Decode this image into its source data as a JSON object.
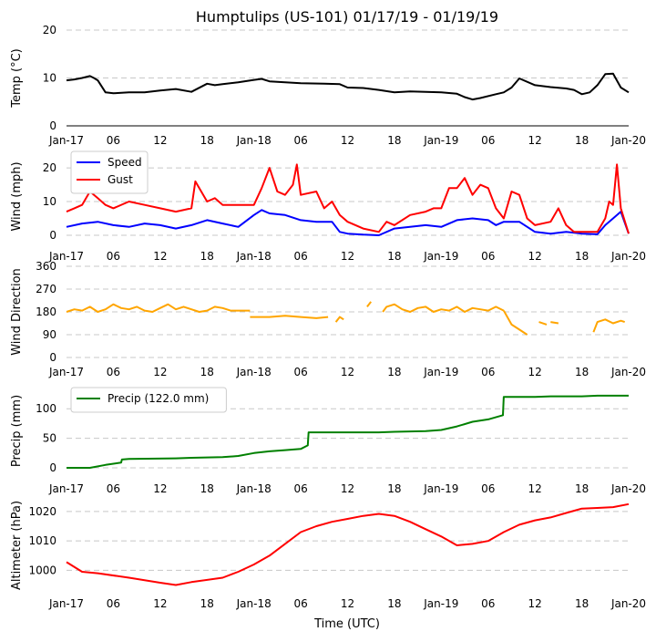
{
  "chart_data": {
    "type": "line",
    "title": "Humptulips (US-101) 01/17/19 - 01/19/19",
    "xlabel": "Time (UTC)",
    "x_range_hours": [
      0,
      72
    ],
    "x_ticks": [
      {
        "h": 0,
        "label": "Jan-17"
      },
      {
        "h": 6,
        "label": "06"
      },
      {
        "h": 12,
        "label": "12"
      },
      {
        "h": 18,
        "label": "18"
      },
      {
        "h": 24,
        "label": "Jan-18"
      },
      {
        "h": 30,
        "label": "06"
      },
      {
        "h": 36,
        "label": "12"
      },
      {
        "h": 42,
        "label": "18"
      },
      {
        "h": 48,
        "label": "Jan-19"
      },
      {
        "h": 54,
        "label": "06"
      },
      {
        "h": 60,
        "label": "12"
      },
      {
        "h": 66,
        "label": "18"
      },
      {
        "h": 72,
        "label": "Jan-20"
      }
    ],
    "panels": [
      {
        "key": "temp",
        "ylabel": "Temp (°C)",
        "ylim": [
          0,
          20
        ],
        "yticks": [
          0,
          10,
          20
        ],
        "series": [
          {
            "name": "Temp",
            "color": "#000000",
            "x": [
              0,
              1,
              2,
              3,
              3.5,
              4,
              5,
              6,
              8,
              10,
              12,
              14,
              16,
              18,
              19,
              20,
              22,
              24,
              25,
              26,
              28,
              30,
              33,
              35,
              36,
              38,
              40,
              42,
              44,
              46,
              48,
              50,
              51,
              52,
              53,
              55,
              56,
              57,
              58,
              60,
              62,
              64,
              65,
              66,
              67,
              68,
              69,
              70,
              71,
              72
            ],
            "values": [
              9.5,
              9.7,
              10,
              10.4,
              10,
              9.5,
              7,
              6.8,
              7,
              7,
              7.4,
              7.7,
              7.1,
              8.8,
              8.5,
              8.7,
              9.1,
              9.6,
              9.8,
              9.3,
              9.1,
              8.9,
              8.8,
              8.7,
              8,
              7.9,
              7.5,
              7,
              7.2,
              7.1,
              7,
              6.7,
              6,
              5.5,
              5.8,
              6.6,
              7,
              8,
              9.9,
              8.5,
              8.1,
              7.8,
              7.5,
              6.6,
              7,
              8.5,
              10.8,
              10.9,
              8,
              7
            ]
          }
        ]
      },
      {
        "key": "wind",
        "ylabel": "Wind (mph)",
        "ylim": [
          0,
          23
        ],
        "yticks": [
          0,
          10,
          20
        ],
        "legend": "top-left",
        "series": [
          {
            "name": "Speed",
            "color": "#0000ff",
            "x": [
              0,
              2,
              4,
              6,
              8,
              10,
              12,
              14,
              16,
              18,
              20,
              22,
              24,
              25,
              26,
              28,
              30,
              32,
              34,
              35,
              36,
              38,
              40,
              42,
              44,
              46,
              48,
              50,
              52,
              54,
              55,
              56,
              58,
              60,
              62,
              64,
              66,
              68,
              69,
              70,
              71,
              72
            ],
            "values": [
              2.5,
              3.5,
              4,
              3,
              2.5,
              3.5,
              3,
              2,
              3,
              4.5,
              3.5,
              2.5,
              6,
              7.5,
              6.5,
              6,
              4.5,
              4,
              4,
              1,
              0.5,
              0.2,
              0,
              2,
              2.5,
              3,
              2.5,
              4.5,
              5,
              4.5,
              3,
              4,
              4,
              1,
              0.5,
              1,
              0.5,
              0.3,
              3,
              5,
              7,
              0.5
            ]
          },
          {
            "name": "Gust",
            "color": "#ff0000",
            "x": [
              0,
              1,
              2,
              3,
              4,
              5,
              6,
              8,
              10,
              12,
              14,
              16,
              16.5,
              18,
              19,
              20,
              22,
              24,
              25,
              26,
              27,
              28,
              29,
              29.5,
              30,
              32,
              33,
              34,
              35,
              36,
              38,
              40,
              41,
              42,
              44,
              46,
              47,
              48,
              49,
              50,
              51,
              52,
              53,
              54,
              55,
              56,
              57,
              58,
              59,
              60,
              62,
              63,
              64,
              65,
              66,
              68,
              69,
              69.5,
              70,
              70.5,
              71,
              72
            ],
            "values": [
              7,
              8,
              9,
              13,
              11,
              9,
              8,
              10,
              9,
              8,
              7,
              8,
              16,
              10,
              11,
              9,
              9,
              9,
              14,
              20,
              13,
              12,
              15,
              21,
              12,
              13,
              8,
              10,
              6,
              4,
              2,
              1,
              4,
              3,
              6,
              7,
              8,
              8,
              14,
              14,
              17,
              12,
              15,
              14,
              8,
              5,
              13,
              12,
              5,
              3,
              4,
              8,
              3,
              1,
              1,
              1,
              5,
              10,
              9,
              21,
              8,
              0.5
            ]
          }
        ]
      },
      {
        "key": "dir",
        "ylabel": "Wind Direction",
        "ylim": [
          0,
          360
        ],
        "yticks": [
          0,
          90,
          180,
          270,
          360
        ],
        "series": [
          {
            "name": "Direction",
            "color": "#ffa500",
            "segments": [
              {
                "x": [
                  0,
                  1,
                  2,
                  3,
                  4,
                  5,
                  6,
                  7,
                  8,
                  9,
                  10,
                  11,
                  12,
                  13,
                  14,
                  15,
                  16,
                  17,
                  18,
                  19,
                  20,
                  21,
                  23.5
                ],
                "values": [
                  180,
                  190,
                  185,
                  200,
                  180,
                  190,
                  210,
                  195,
                  190,
                  200,
                  185,
                  180,
                  195,
                  210,
                  190,
                  200,
                  190,
                  180,
                  185,
                  200,
                  195,
                  185,
                  185
                ]
              },
              {
                "x": [
                  23.5,
                  24,
                  26,
                  28,
                  30,
                  32,
                  33.5
                ],
                "values": [
                  160,
                  160,
                  160,
                  165,
                  160,
                  155,
                  160
                ]
              },
              {
                "x": [
                  34.5,
                  35,
                  35.5
                ],
                "values": [
                  140,
                  160,
                  150
                ]
              },
              {
                "x": [
                  38.5,
                  39
                ],
                "values": [
                  200,
                  220
                ]
              },
              {
                "x": [
                  40.5,
                  41,
                  42,
                  43,
                  44,
                  45,
                  46,
                  47,
                  48,
                  49,
                  50,
                  51,
                  52,
                  53,
                  54,
                  55,
                  56
                ],
                "values": [
                  180,
                  200,
                  210,
                  190,
                  180,
                  195,
                  200,
                  180,
                  190,
                  185,
                  200,
                  180,
                  195,
                  190,
                  185,
                  200,
                  185
                ]
              },
              {
                "x": [
                  56,
                  57,
                  58,
                  59
                ],
                "values": [
                  185,
                  130,
                  110,
                  90
                ]
              },
              {
                "x": [
                  60.5,
                  61.5
                ],
                "values": [
                  140,
                  130
                ]
              },
              {
                "x": [
                  62,
                  63
                ],
                "values": [
                  140,
                  135
                ]
              },
              {
                "x": [
                  67.5,
                  68,
                  69,
                  70,
                  71,
                  71.5
                ],
                "values": [
                  100,
                  140,
                  150,
                  135,
                  145,
                  140
                ]
              }
            ]
          }
        ]
      },
      {
        "key": "precip",
        "ylabel": "Precip (mm)",
        "ylim": [
          0,
          125
        ],
        "yticks": [
          0,
          50,
          100
        ],
        "legend": "top-left",
        "series": [
          {
            "name": "Precip (122.0 mm)",
            "color": "#008000",
            "x": [
              0,
              3,
              5,
              7,
              7.1,
              8,
              14,
              16,
              20,
              22,
              24,
              26,
              28,
              30,
              30.9,
              31,
              36,
              40,
              42,
              46,
              48,
              50,
              52,
              54,
              55.9,
              56,
              60,
              62,
              64,
              66,
              68,
              70,
              72
            ],
            "values": [
              0,
              0,
              5,
              9,
              14,
              15,
              16,
              17,
              18,
              20,
              25,
              28,
              30,
              32,
              38,
              60,
              60,
              60,
              61,
              62,
              64,
              70,
              78,
              82,
              89,
              120,
              120,
              121,
              121,
              121,
              122,
              122,
              122
            ]
          }
        ]
      },
      {
        "key": "alt",
        "ylabel": "Altimeter (hPa)",
        "ylim": [
          993,
          1024
        ],
        "yticks": [
          1000,
          1010,
          1020
        ],
        "series": [
          {
            "name": "Altimeter",
            "color": "#ff0000",
            "x": [
              0,
              2,
              4,
              8,
              12,
              14,
              16,
              20,
              22,
              24,
              26,
              28,
              30,
              32,
              34,
              36,
              38,
              40,
              42,
              44,
              46,
              48,
              50,
              52,
              54,
              56,
              58,
              60,
              62,
              64,
              66,
              68,
              70,
              72
            ],
            "values": [
              1002.8,
              999.5,
              999,
              997.5,
              995.8,
              995.0,
              996,
              997.5,
              999.5,
              1002,
              1005,
              1009,
              1013,
              1015,
              1016.5,
              1017.5,
              1018.5,
              1019.2,
              1018.5,
              1016.5,
              1014,
              1011.5,
              1008.5,
              1009,
              1010,
              1013,
              1015.5,
              1017,
              1018,
              1019.5,
              1021,
              1021.2,
              1021.5,
              1022.5
            ]
          }
        ]
      }
    ]
  }
}
